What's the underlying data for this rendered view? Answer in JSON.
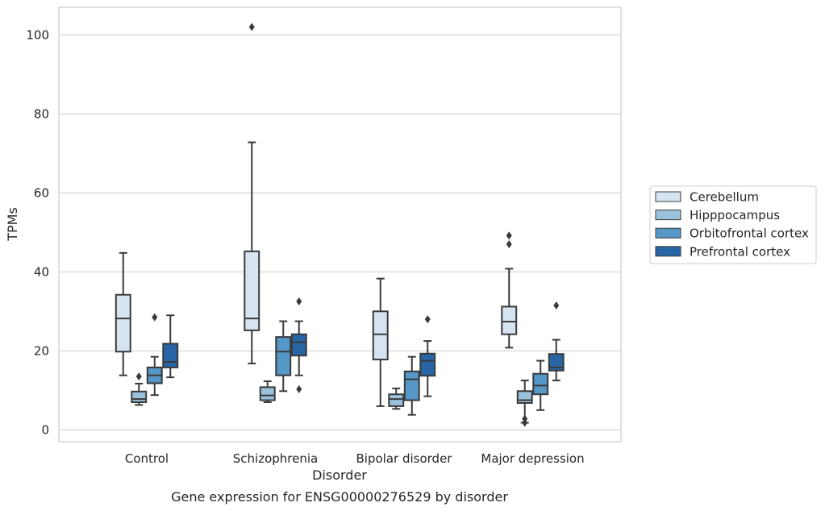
{
  "chart_data": {
    "type": "box",
    "title": "",
    "caption": "Gene expression for ENSG00000276529 by disorder",
    "xlabel": "Disorder",
    "ylabel": "TPMs",
    "ylim": [
      -3,
      107
    ],
    "yticks": [
      0,
      20,
      40,
      60,
      80,
      100
    ],
    "grid": "horizontal",
    "legend_position": "right",
    "categories": [
      "Control",
      "Schizophrenia",
      "Bipolar disorder",
      "Major depression"
    ],
    "series": [
      {
        "name": "Cerebellum",
        "color": "#d6e4f2",
        "boxes": [
          {
            "whisker_low": 13.8,
            "q1": 19.8,
            "median": 28.2,
            "q3": 34.2,
            "whisker_high": 44.8,
            "outliers": []
          },
          {
            "whisker_low": 16.8,
            "q1": 25.2,
            "median": 28.2,
            "q3": 45.2,
            "whisker_high": 72.8,
            "outliers": [
              102
            ]
          },
          {
            "whisker_low": 6.0,
            "q1": 17.8,
            "median": 24.2,
            "q3": 30.0,
            "whisker_high": 38.3,
            "outliers": []
          },
          {
            "whisker_low": 20.8,
            "q1": 24.2,
            "median": 27.4,
            "q3": 31.2,
            "whisker_high": 40.8,
            "outliers": [
              47,
              49.2
            ]
          }
        ]
      },
      {
        "name": "Hipppocampus",
        "color": "#9ac2dc",
        "boxes": [
          {
            "whisker_low": 6.3,
            "q1": 7.0,
            "median": 7.8,
            "q3": 9.7,
            "whisker_high": 11.7,
            "outliers": [
              13.5
            ]
          },
          {
            "whisker_low": 7.0,
            "q1": 7.5,
            "median": 8.7,
            "q3": 10.8,
            "whisker_high": 12.3,
            "outliers": []
          },
          {
            "whisker_low": 5.3,
            "q1": 6.0,
            "median": 7.8,
            "q3": 9.0,
            "whisker_high": 10.5,
            "outliers": []
          },
          {
            "whisker_low": 1.8,
            "q1": 6.8,
            "median": 7.5,
            "q3": 9.8,
            "whisker_high": 12.5,
            "outliers": [
              2.8,
              1.8
            ]
          }
        ]
      },
      {
        "name": "Orbitofrontal cortex",
        "color": "#5597c6",
        "boxes": [
          {
            "whisker_low": 8.8,
            "q1": 11.8,
            "median": 13.8,
            "q3": 15.8,
            "whisker_high": 18.5,
            "outliers": [
              28.5
            ]
          },
          {
            "whisker_low": 9.8,
            "q1": 13.8,
            "median": 19.8,
            "q3": 23.5,
            "whisker_high": 27.5,
            "outliers": []
          },
          {
            "whisker_low": 3.8,
            "q1": 7.5,
            "median": 12.8,
            "q3": 14.8,
            "whisker_high": 18.5,
            "outliers": []
          },
          {
            "whisker_low": 5.0,
            "q1": 9.0,
            "median": 11.2,
            "q3": 14.2,
            "whisker_high": 17.5,
            "outliers": []
          }
        ]
      },
      {
        "name": "Prefrontal cortex",
        "color": "#2865a5",
        "boxes": [
          {
            "whisker_low": 13.3,
            "q1": 15.8,
            "median": 17.2,
            "q3": 21.8,
            "whisker_high": 29.0,
            "outliers": []
          },
          {
            "whisker_low": 13.8,
            "q1": 18.8,
            "median": 22.2,
            "q3": 24.2,
            "whisker_high": 27.5,
            "outliers": [
              32.5,
              10.3
            ]
          },
          {
            "whisker_low": 8.5,
            "q1": 13.7,
            "median": 17.5,
            "q3": 19.3,
            "whisker_high": 22.5,
            "outliers": [
              28.0
            ]
          },
          {
            "whisker_low": 12.5,
            "q1": 15.0,
            "median": 15.8,
            "q3": 19.2,
            "whisker_high": 22.8,
            "outliers": [
              31.5
            ]
          }
        ]
      }
    ]
  }
}
